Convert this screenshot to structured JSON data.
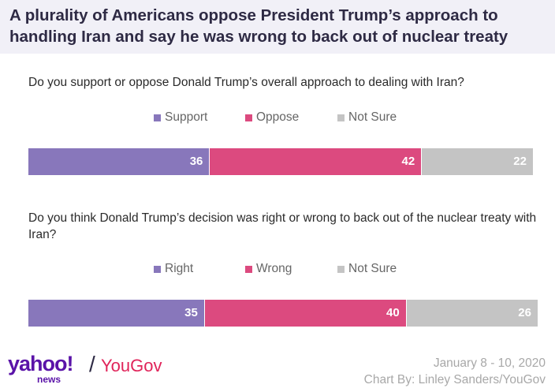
{
  "title": "A plurality of Americans oppose President Trump’s approach to handling Iran and say he was wrong to back out of nuclear treaty",
  "chart_data": [
    {
      "type": "bar",
      "stacked": true,
      "orientation": "horizontal",
      "question": "Do you support or oppose Donald Trump’s overall approach to dealing with Iran?",
      "series": [
        {
          "name": "Support",
          "value": 36,
          "color": "#8877bb"
        },
        {
          "name": "Oppose",
          "value": 42,
          "color": "#dc4a7f"
        },
        {
          "name": "Not Sure",
          "value": 22,
          "color": "#c4c4c4"
        }
      ]
    },
    {
      "type": "bar",
      "stacked": true,
      "orientation": "horizontal",
      "question": "Do you think Donald Trump’s decision was right or wrong to back out of the nuclear treaty with Iran?",
      "series": [
        {
          "name": "Right",
          "value": 35,
          "color": "#8877bb"
        },
        {
          "name": "Wrong",
          "value": 40,
          "color": "#dc4a7f"
        },
        {
          "name": "Not Sure",
          "value": 26,
          "color": "#c4c4c4"
        }
      ]
    }
  ],
  "footer": {
    "date": "January 8 - 10, 2020",
    "credit": "Chart By: Linley Sanders/YouGov",
    "logo_yahoo": "yahoo!",
    "logo_news": "news",
    "logo_slash": "/",
    "logo_yougov": "YouGov"
  }
}
